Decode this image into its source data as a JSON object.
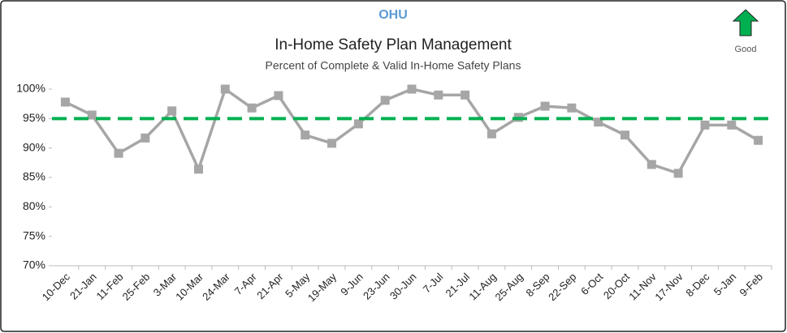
{
  "chart_data": {
    "type": "line",
    "header": "OHU",
    "title": "In-Home Safety Plan Management",
    "subtitle": "Percent of Complete & Valid In-Home Safety Plans",
    "direction_label": "Good",
    "categories": [
      "10-Dec",
      "21-Jan",
      "11-Feb",
      "25-Feb",
      "3-Mar",
      "10-Mar",
      "24-Mar",
      "7-Apr",
      "21-Apr",
      "5-May",
      "19-May",
      "9-Jun",
      "23-Jun",
      "30-Jun",
      "7-Jul",
      "21-Jul",
      "11-Aug",
      "25-Aug",
      "8-Sep",
      "22-Sep",
      "6-Oct",
      "20-Oct",
      "11-Nov",
      "17-Nov",
      "8-Dec",
      "5-Jan",
      "9-Feb"
    ],
    "values": [
      97.8,
      95.6,
      89.1,
      91.7,
      96.3,
      86.4,
      100,
      96.8,
      98.9,
      92.2,
      90.8,
      94.1,
      98.1,
      100,
      99.0,
      99.0,
      92.4,
      95.2,
      97.1,
      96.8,
      94.4,
      92.2,
      87.2,
      85.7,
      93.9,
      93.9,
      91.3
    ],
    "color": "#a6a6a6",
    "target": 95,
    "target_color": "#00b050",
    "ylim": [
      70,
      100
    ],
    "yticks": [
      {
        "value": 70,
        "label": "70%"
      },
      {
        "value": 75,
        "label": "75%"
      },
      {
        "value": 80,
        "label": "80%"
      },
      {
        "value": 85,
        "label": "85%"
      },
      {
        "value": 90,
        "label": "90%"
      },
      {
        "value": 95,
        "label": "95%"
      },
      {
        "value": 100,
        "label": "100%"
      }
    ],
    "grid": false
  }
}
